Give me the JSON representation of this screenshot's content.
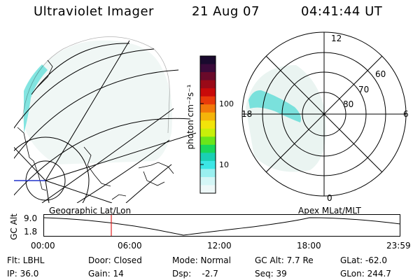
{
  "header": {
    "instrument": "Ultraviolet Imager",
    "date": "21 Aug 07",
    "time": "04:41:44 UT"
  },
  "colorbar": {
    "label": "photon cm⁻²s⁻¹",
    "ticks": [
      "100",
      "10"
    ],
    "colors": [
      "#1a0a2e",
      "#3a0a3a",
      "#6a0a2a",
      "#9a0a18",
      "#c80a0a",
      "#e83a0a",
      "#f2780a",
      "#f4b40a",
      "#f2e40a",
      "#c8f00a",
      "#6ae61a",
      "#1ad85a",
      "#1ad0b4",
      "#3ce6e6",
      "#9af0f0",
      "#d4f6f6",
      "#eef8f8"
    ]
  },
  "polar": {
    "mlt_labels": {
      "top": "12",
      "left": "18",
      "right": "6",
      "bottom": "0"
    },
    "lat_labels": [
      "60",
      "70",
      "80"
    ]
  },
  "timeline": {
    "left_title": "Geographic Lat/Lon",
    "right_title": "Apex MLat/MLT",
    "ylabel": "GC Alt",
    "y_ticks": [
      "9.0",
      "1.8"
    ],
    "x_ticks": [
      "00:00",
      "06:00",
      "12:00",
      "18:00",
      "23:59"
    ]
  },
  "info": {
    "row1": {
      "flt": "Flt: LBHL",
      "door": "Door: Closed",
      "mode": "Mode: Normal",
      "gcalt": "GC Alt: 7.7 Re",
      "glat": "GLat: -62.0"
    },
    "row2": {
      "ip": "IP: 36.0",
      "gain": "Gain: 14",
      "dsp": "Dsp:    -2.7",
      "seq": "Seq: 39",
      "glon": "GLon: 244.7"
    }
  }
}
